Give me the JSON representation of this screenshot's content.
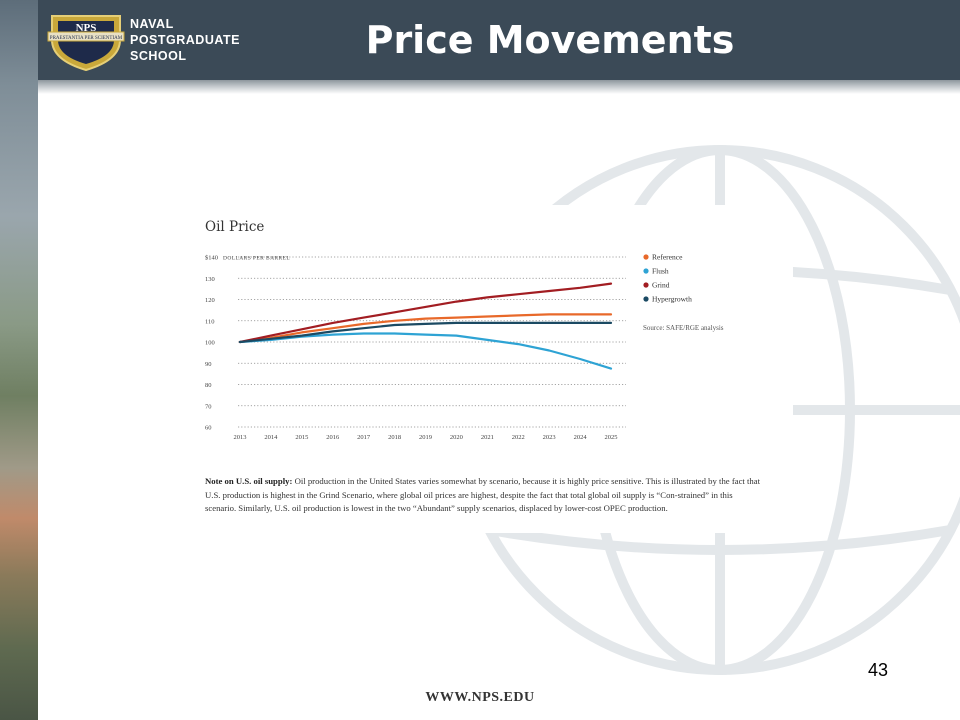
{
  "header": {
    "logo_lines": [
      "NAVAL",
      "POSTGRADUATE",
      "SCHOOL"
    ],
    "logo_emblem": "NPS",
    "logo_motto": "PRAESTANTIA PER SCIENTIAM",
    "title": "Price Movements"
  },
  "colors": {
    "header_bg": "#3b4a57",
    "Reference": "#e8692a",
    "Flush": "#2ea3d4",
    "Grind": "#a21d22",
    "Hypergrowth": "#1b4a63"
  },
  "chart_data": {
    "type": "line",
    "title": "Oil Price",
    "ylabel": "$140 DOLLARS PER BARREL",
    "x": [
      "2013",
      "2014",
      "2015",
      "2016",
      "2017",
      "2018",
      "2019",
      "2020",
      "2021",
      "2022",
      "2023",
      "2024",
      "2025"
    ],
    "yticks": [
      "60",
      "70",
      "80",
      "90",
      "100",
      "110",
      "120",
      "130",
      "$140"
    ],
    "ylim": [
      60,
      140
    ],
    "grid": true,
    "legend_position": "right",
    "series": [
      {
        "name": "Reference",
        "values": [
          100,
          102,
          104.5,
          106.5,
          108.5,
          110,
          111,
          111.5,
          112,
          112.5,
          113,
          113,
          113
        ]
      },
      {
        "name": "Flush",
        "values": [
          100,
          101,
          102.5,
          103.5,
          104,
          104,
          103.5,
          103,
          101,
          99,
          96,
          92,
          87.5
        ]
      },
      {
        "name": "Grind",
        "values": [
          100,
          103,
          106,
          109,
          111.5,
          114,
          116.5,
          119,
          121,
          122.5,
          124,
          125.5,
          127.5
        ]
      },
      {
        "name": "Hypergrowth",
        "values": [
          100,
          101.5,
          103,
          105,
          106.5,
          108,
          108.5,
          109,
          109,
          109,
          109,
          109,
          109
        ]
      }
    ],
    "source": "Source: SAFE/RGE analysis"
  },
  "note": {
    "bold_lead": "Note on U.S. oil supply:",
    "text": " Oil production in the United States varies somewhat by scenario, because it is highly price sensitive. This is illustrated by the fact that U.S. production is highest in the Grind Scenario, where global oil prices are highest, despite the fact that total global oil supply is “Con-strained” in this scenario. Similarly, U.S. oil production is lowest in the two “Abundant” supply scenarios, displaced by lower-cost OPEC production."
  },
  "footer": {
    "page_number": "43",
    "url": "WWW.NPS.EDU"
  }
}
